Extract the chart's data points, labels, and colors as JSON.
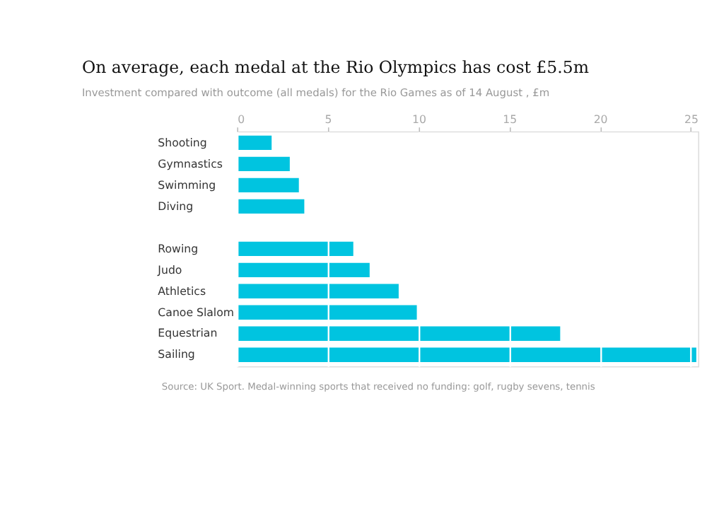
{
  "chart_data": {
    "type": "bar",
    "orientation": "horizontal",
    "title": "On average, each medal at the Rio Olympics has cost £5.5m",
    "subtitle": "Investment compared with outcome (all medals) for the Rio Games as of 14 August , £m",
    "categories": [
      "Shooting",
      "Gymnastics",
      "Swimming",
      "Diving",
      null,
      "Rowing",
      "Judo",
      "Athletics",
      "Canoe Slalom",
      "Equestrian",
      "Sailing"
    ],
    "values": [
      1.9,
      2.9,
      3.4,
      3.7,
      null,
      6.4,
      7.3,
      8.9,
      9.9,
      17.8,
      25.3
    ],
    "color": "#00c4e0",
    "xlim": [
      0,
      25.4
    ],
    "xticks": [
      0,
      5,
      10,
      15,
      20,
      25
    ],
    "grid": "x",
    "annotations": [
      "Source: UK Sport. Medal-winning sports that received no funding: golf, rugby sevens, tennis"
    ]
  }
}
